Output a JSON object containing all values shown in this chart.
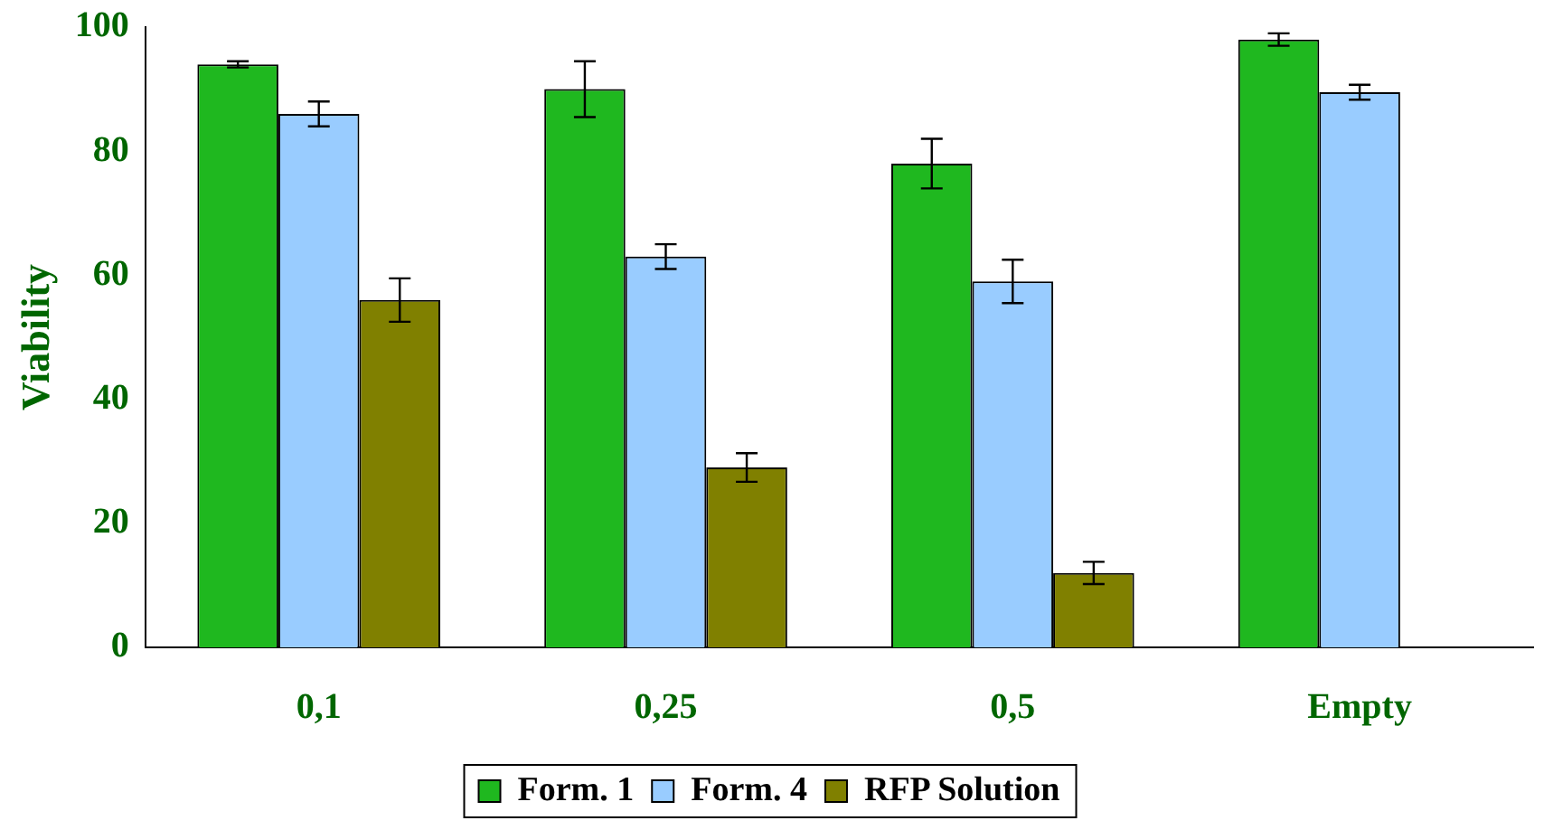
{
  "chart_data": {
    "type": "bar",
    "ylabel": "Viability",
    "categories": [
      "0,1",
      "0,25",
      "0,5",
      "Empty"
    ],
    "series": [
      {
        "name": "Form. 1",
        "color": "#1fb81f",
        "values": [
          94,
          90,
          78,
          98
        ],
        "errors": [
          0.5,
          4.5,
          4,
          1
        ]
      },
      {
        "name": "Form. 4",
        "color": "#99ccff",
        "values": [
          86,
          63,
          59,
          89.5
        ],
        "errors": [
          2,
          2,
          3.5,
          1.2
        ]
      },
      {
        "name": "RFP Solution",
        "color": "#808000",
        "values": [
          56,
          29,
          12,
          null
        ],
        "errors": [
          3.5,
          2.3,
          1.8,
          null
        ]
      }
    ],
    "ylim": [
      0,
      100
    ],
    "yticks": [
      0,
      20,
      40,
      60,
      80,
      100
    ],
    "grid": false,
    "legend": "bottom"
  }
}
